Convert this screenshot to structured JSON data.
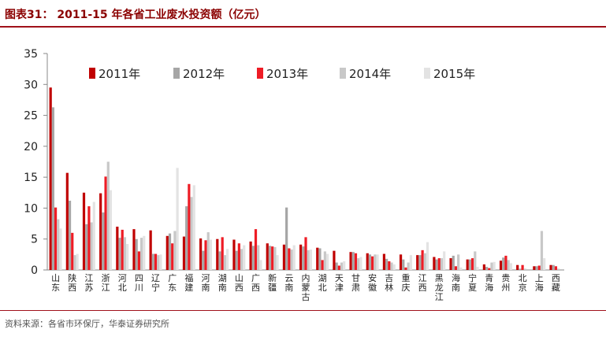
{
  "header": {
    "title": "图表31：  2011-15 年各省工业废水投资额（亿元）"
  },
  "footer": {
    "source": "资料来源：各省市环保厅，华泰证券研究所"
  },
  "colors": {
    "2011": "#c00000",
    "2012": "#a6a6a6",
    "2013": "#ee1c25",
    "2014": "#c8c8c8",
    "2015": "#e3e3e3",
    "title": "#8B0000",
    "rule": "#a0101a"
  },
  "chart_data": {
    "type": "bar",
    "title": "2011-15 年各省工业废水投资额（亿元）",
    "xlabel": "",
    "ylabel": "",
    "ylim": [
      0,
      35
    ],
    "yticks": [
      0,
      5,
      10,
      15,
      20,
      25,
      30,
      35
    ],
    "grid": false,
    "legend_position": "top",
    "categories": [
      "山东",
      "陕西",
      "江苏",
      "浙江",
      "河北",
      "四川",
      "辽宁",
      "广东",
      "福建",
      "河南",
      "湖南",
      "山西",
      "广西",
      "新疆",
      "云南",
      "内蒙古",
      "湖北",
      "天津",
      "甘肃",
      "安徽",
      "吉林",
      "重庆",
      "江西",
      "黑龙江",
      "海南",
      "宁夏",
      "青海",
      "贵州",
      "北京",
      "上海",
      "西藏"
    ],
    "series": [
      {
        "name": "2011年",
        "color_key": "2011",
        "values": [
          29.5,
          15.7,
          12.5,
          12.4,
          7.0,
          6.6,
          6.4,
          5.5,
          5.4,
          5.1,
          5.0,
          4.9,
          4.6,
          4.3,
          4.1,
          4.1,
          3.6,
          3.1,
          2.9,
          2.7,
          2.6,
          2.5,
          2.4,
          2.1,
          1.9,
          1.7,
          0.9,
          1.5,
          0.8,
          0.6,
          0.8
        ]
      },
      {
        "name": "2012年",
        "color_key": "2012",
        "values": [
          26.3,
          11.2,
          7.4,
          9.3,
          5.2,
          5.0,
          2.6,
          5.9,
          10.3,
          3.1,
          3.0,
          3.1,
          3.9,
          3.9,
          10.1,
          3.8,
          3.5,
          1.2,
          2.9,
          2.5,
          1.8,
          1.7,
          2.4,
          1.7,
          2.3,
          1.7,
          0.5,
          2.0,
          0.2,
          0.6,
          0.8
        ]
      },
      {
        "name": "2013年",
        "color_key": "2013",
        "values": [
          10.1,
          6.0,
          10.3,
          15.1,
          6.5,
          3.0,
          2.6,
          4.3,
          13.9,
          4.8,
          5.3,
          4.3,
          6.6,
          3.8,
          3.5,
          5.3,
          1.6,
          0.7,
          2.7,
          2.2,
          1.4,
          0.4,
          3.2,
          1.9,
          0.6,
          1.9,
          0.3,
          2.3,
          0.8,
          0.7,
          0.6
        ]
      },
      {
        "name": "2014年",
        "color_key": "2014",
        "values": [
          8.2,
          2.4,
          7.7,
          17.5,
          5.3,
          5.2,
          2.4,
          6.3,
          11.8,
          6.1,
          2.4,
          3.4,
          4.0,
          3.7,
          3.3,
          3.2,
          3.0,
          1.2,
          1.9,
          2.5,
          1.2,
          1.2,
          2.7,
          1.9,
          2.5,
          3.0,
          1.2,
          1.6,
          0.2,
          6.3,
          0.2
        ]
      },
      {
        "name": "2015年",
        "color_key": "2015",
        "values": [
          6.7,
          2.6,
          11.0,
          12.9,
          4.2,
          5.5,
          2.5,
          16.5,
          13.7,
          4.9,
          3.4,
          4.0,
          1.6,
          2.4,
          4.0,
          3.3,
          2.6,
          1.4,
          2.1,
          2.5,
          0.9,
          2.4,
          4.5,
          3.0,
          0.4,
          0.5,
          1.3,
          1.1,
          0.0,
          1.9,
          0.0
        ]
      }
    ]
  }
}
